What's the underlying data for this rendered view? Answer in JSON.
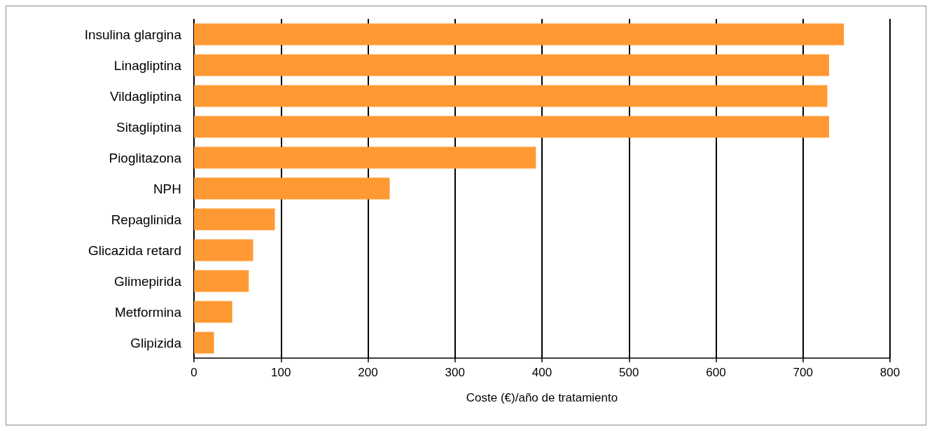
{
  "chart_data": {
    "type": "bar",
    "orientation": "horizontal",
    "xlabel": "Coste (€)/año de tratamiento",
    "categories": [
      "Insulina glargina",
      "Linagliptina",
      "Vildagliptina",
      "Sitagliptina",
      "Pioglitazona",
      "NPH",
      "Repaglinida",
      "Glicazida retard",
      "Glimepirida",
      "Metformina",
      "Glipizida"
    ],
    "values": [
      747,
      730,
      728,
      730,
      393,
      225,
      93,
      68,
      63,
      44,
      23
    ],
    "color": "#ff9933",
    "xlim": [
      0,
      800
    ],
    "xticks": [
      0,
      100,
      200,
      300,
      400,
      500,
      600,
      700,
      800
    ],
    "grid": "x"
  }
}
